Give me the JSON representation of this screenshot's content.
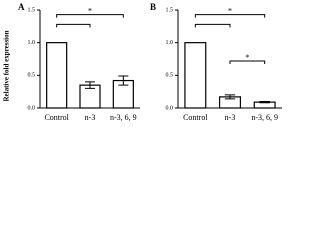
{
  "chart_data": [
    {
      "type": "bar",
      "panel": "A",
      "ylabel": "Relative fold expression",
      "categories": [
        "Control",
        "n-3",
        "n-3, 6, 9"
      ],
      "values": [
        1.0,
        0.35,
        0.42
      ],
      "errors": [
        0,
        0.05,
        0.07
      ],
      "color": "#ffffff",
      "ylim": [
        0,
        1.5
      ],
      "yticks": [
        {
          "value": 0,
          "label": "0.0"
        },
        {
          "value": 0.5,
          "label": "0.5"
        },
        {
          "value": 1,
          "label": "1.0"
        },
        {
          "value": 1.5,
          "label": "1.5"
        }
      ],
      "annotations": [
        "*"
      ]
    },
    {
      "type": "bar",
      "panel": "B",
      "categories": [
        "Control",
        "n-3",
        "n-3, 6, 9"
      ],
      "values": [
        1.0,
        0.17,
        0.09
      ],
      "errors": [
        0,
        0.03,
        0.01
      ],
      "color": "#ffffff",
      "ylim": [
        0,
        1.5
      ],
      "yticks": [
        {
          "value": 0,
          "label": "0.0"
        },
        {
          "value": 0.5,
          "label": "0.5"
        },
        {
          "value": 1,
          "label": "1.0"
        },
        {
          "value": 1.5,
          "label": "1.5"
        }
      ],
      "annotations": [
        "*",
        "*"
      ]
    }
  ]
}
